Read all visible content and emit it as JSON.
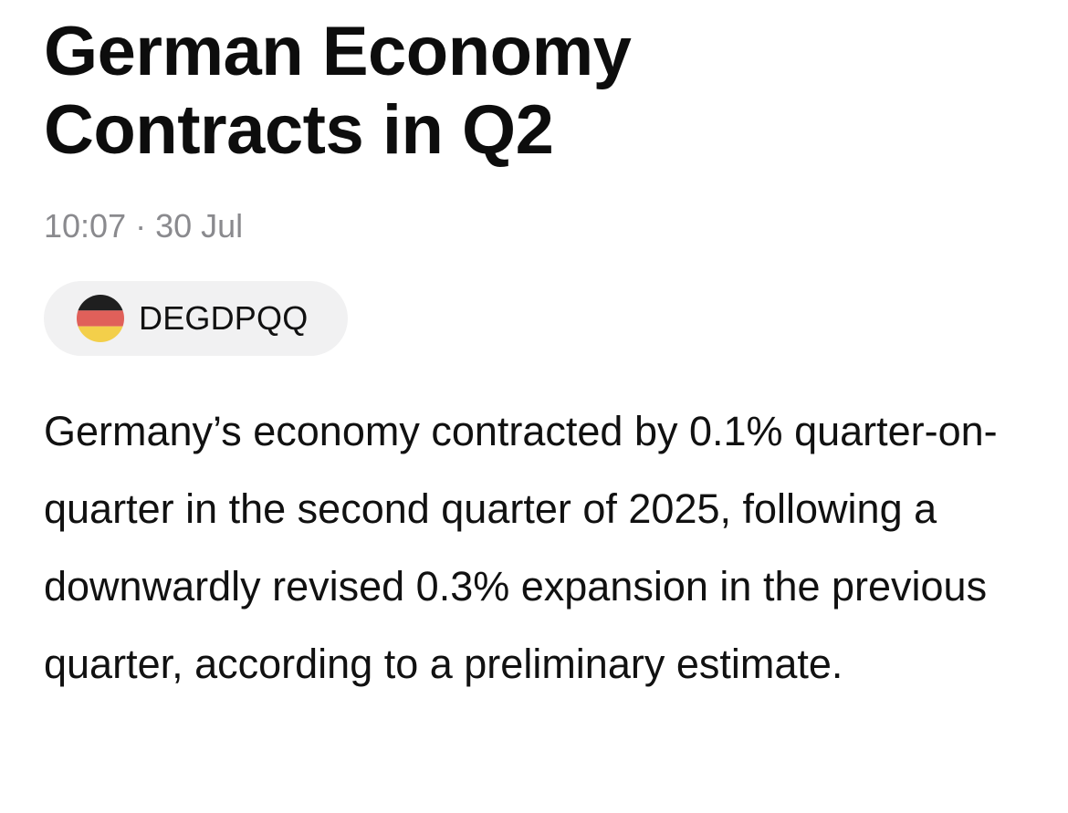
{
  "article": {
    "headline": "German Economy Contracts in Q2",
    "timestamp": "10:07 · 30 Jul",
    "ticker": {
      "symbol": "DEGDPQQ",
      "flag_icon": "germany-flag-icon",
      "flag_colors": [
        "#1f1f1f",
        "#e0605a",
        "#f3cf4a"
      ]
    },
    "body": "Germany’s economy contracted by 0.1% quarter-on-quarter in the second quarter of 2025, following a downwardly revised 0.3% expansion in the previous quarter, according to a preliminary estimate."
  }
}
